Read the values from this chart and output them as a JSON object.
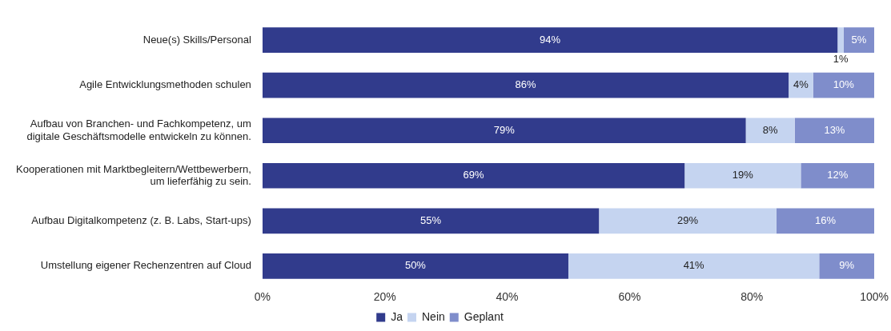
{
  "chart_data": {
    "type": "bar",
    "orientation": "horizontal",
    "stacked": true,
    "legend": "bottom",
    "grid": false,
    "categories": [
      "Neue(s) Skills/Personal",
      "Agile Entwicklungsmethoden schulen",
      "Aufbau von Branchen- und Fachkompetenz, um digitale Geschäftsmodelle entwickeln zu können.",
      "Kooperationen mit Marktbegleitern/Wettbewerbern, um lieferfähig zu sein.",
      "Aufbau Digitalkompetenz (z. B. Labs, Start-ups)",
      "Umstellung eigener Rechenzentren auf Cloud"
    ],
    "series": [
      {
        "name": "Ja",
        "color": "#313b8c",
        "values": [
          94,
          86,
          79,
          69,
          55,
          50
        ],
        "value_labels": [
          "94%",
          "86%",
          "79%",
          "69%",
          "55%",
          "50%"
        ]
      },
      {
        "name": "Nein",
        "color": "#c5d4f0",
        "values": [
          1,
          4,
          8,
          19,
          29,
          41
        ],
        "value_labels": [
          "1%",
          "4%",
          "8%",
          "19%",
          "29%",
          "41%"
        ]
      },
      {
        "name": "Geplant",
        "color": "#7f8dcb",
        "values": [
          5,
          10,
          13,
          12,
          16,
          9
        ],
        "value_labels": [
          "5%",
          "10%",
          "13%",
          "12%",
          "16%",
          "9%"
        ]
      }
    ],
    "xlim": [
      0,
      100
    ],
    "xticks": [
      {
        "value": 0,
        "label": "0%"
      },
      {
        "value": 20,
        "label": "20%"
      },
      {
        "value": 40,
        "label": "40%"
      },
      {
        "value": 60,
        "label": "60%"
      },
      {
        "value": 80,
        "label": "80%"
      },
      {
        "value": 100,
        "label": "100%"
      }
    ]
  }
}
